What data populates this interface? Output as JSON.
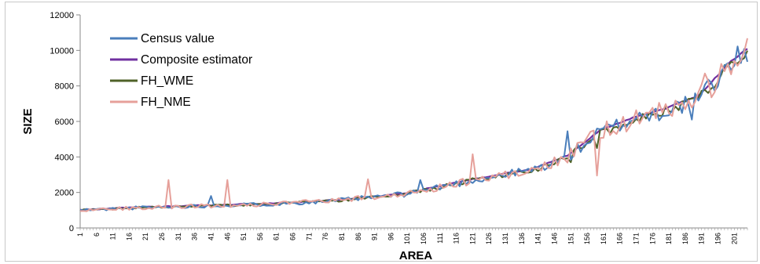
{
  "chart_data": {
    "type": "line",
    "title": "",
    "xlabel": "AREA",
    "ylabel": "SIZE",
    "xlim": [
      1,
      205
    ],
    "ylim": [
      0,
      12000
    ],
    "y_ticks": [
      0,
      2000,
      4000,
      6000,
      8000,
      10000,
      12000
    ],
    "y_tick_labels": [
      "0",
      "2000",
      "4000",
      "6000",
      "8000",
      "10000",
      "12000"
    ],
    "x_tick_labels": [
      "1",
      "6",
      "11",
      "16",
      "21",
      "26",
      "31",
      "36",
      "41",
      "46",
      "51",
      "56",
      "61",
      "66",
      "71",
      "76",
      "81",
      "86",
      "91",
      "96",
      "101",
      "106",
      "111",
      "116",
      "121",
      "126",
      "131",
      "136",
      "141",
      "146",
      "151",
      "156",
      "161",
      "166",
      "171",
      "176",
      "181",
      "186",
      "191",
      "196",
      "201"
    ],
    "grid": false,
    "legend_position": "top-left",
    "series": [
      {
        "name": "Census value",
        "color": "#4a7ebb"
      },
      {
        "name": "Composite estimator",
        "color": "#7030a0"
      },
      {
        "name": "FH_WME",
        "color": "#4f6228"
      },
      {
        "name": "FH_NME",
        "color": "#e6a09a"
      }
    ],
    "trend": {
      "x": [
        1,
        20,
        40,
        60,
        80,
        100,
        120,
        140,
        150,
        160,
        170,
        180,
        190,
        200,
        205
      ],
      "y": [
        1000,
        1150,
        1250,
        1350,
        1550,
        1900,
        2650,
        3300,
        4000,
        5400,
        6100,
        6600,
        7300,
        9200,
        9900
      ]
    },
    "spikes": {
      "Census value": {
        "x": [
          41,
          105,
          150,
          172,
          188,
          200
        ],
        "y": [
          1800,
          2700,
          5450,
          6500,
          6100,
          8900
        ]
      },
      "FH_NME": {
        "x": [
          28,
          46,
          89,
          121,
          159,
          192
        ],
        "y": [
          2700,
          2700,
          2750,
          4150,
          2950,
          8700
        ]
      },
      "FH_WME": {
        "x": [
          151,
          159
        ],
        "y": [
          3700,
          4500
        ]
      }
    }
  }
}
